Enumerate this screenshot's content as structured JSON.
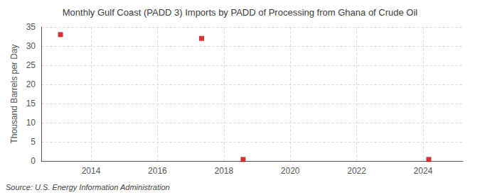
{
  "chart_data": {
    "type": "scatter",
    "title": "Monthly Gulf Coast (PADD 3) Imports by PADD of Processing from Ghana of Crude Oil",
    "ylabel": "Thousand Barrels per Day",
    "annotations": [
      "Source: U.S. Energy Information Administration"
    ],
    "x": [
      2013.08,
      2017.33,
      2018.58,
      2024.17
    ],
    "values": [
      33.0,
      32.0,
      0.4,
      0.4
    ],
    "color": "#cc0000",
    "marker": "square",
    "xlim": [
      2012.5,
      2025.2
    ],
    "xticks": [
      2014,
      2016,
      2018,
      2020,
      2022,
      2024
    ],
    "ylim": [
      0,
      35
    ],
    "yticks": [
      0,
      5,
      10,
      15,
      20,
      25,
      30,
      35
    ],
    "grid": true
  }
}
